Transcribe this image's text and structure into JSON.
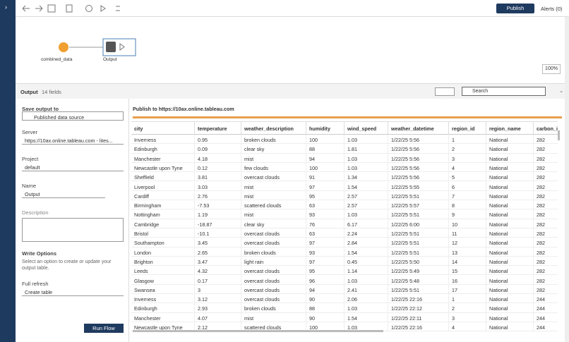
{
  "toolbar": {
    "publish": "Publish",
    "alerts": "Alerts (0)"
  },
  "canvas": {
    "input_node": "combined_data",
    "output_node": "Output",
    "zoom": "100%"
  },
  "panel": {
    "title": "Output",
    "fields": "14 fields",
    "search": "Search"
  },
  "settings": {
    "save_output_label": "Save output to",
    "save_output_value": "Published data source",
    "server_label": "Server",
    "server_value": "https://10ax.online.tableau.com - lites...",
    "project_label": "Project",
    "project_value": "default",
    "name_label": "Name",
    "name_value": "Output",
    "description_label": "Description",
    "write_options_title": "Write Options",
    "write_options_text": "Select an option to create or update your output table.",
    "refresh_label": "Full refresh",
    "refresh_value": "Create table",
    "run": "Run Flow"
  },
  "table": {
    "title": "Publish to https://10ax.online.tableau.com",
    "columns": [
      "city",
      "temperature",
      "weather_description",
      "humidity",
      "wind_speed",
      "weather_datetime",
      "region_id",
      "region_name",
      "carbon_int"
    ],
    "rows": [
      [
        "Inverness",
        "0.95",
        "broken clouds",
        "100",
        "1.03",
        "1/22/25 5:56",
        "1",
        "National",
        "282"
      ],
      [
        "Edinburgh",
        "0.09",
        "clear sky",
        "88",
        "1.81",
        "1/22/25 5:56",
        "2",
        "National",
        "282"
      ],
      [
        "Manchester",
        "4.18",
        "mist",
        "94",
        "1.03",
        "1/22/25 5:56",
        "3",
        "National",
        "282"
      ],
      [
        "Newcastle upon Tyne",
        "0.12",
        "few clouds",
        "100",
        "1.03",
        "1/22/25 5:56",
        "4",
        "National",
        "282"
      ],
      [
        "Sheffield",
        "3.81",
        "overcast clouds",
        "91",
        "1.34",
        "1/22/25 5:56",
        "5",
        "National",
        "282"
      ],
      [
        "Liverpool",
        "3.03",
        "mist",
        "97",
        "1.54",
        "1/22/25 5:55",
        "6",
        "National",
        "282"
      ],
      [
        "Cardiff",
        "2.76",
        "mist",
        "95",
        "2.57",
        "1/22/25 5:51",
        "7",
        "National",
        "282"
      ],
      [
        "Birmingham",
        "-7.53",
        "scattered clouds",
        "63",
        "2.57",
        "1/22/25 5:57",
        "8",
        "National",
        "282"
      ],
      [
        "Nottingham",
        "1.19",
        "mist",
        "93",
        "1.03",
        "1/22/25 5:51",
        "9",
        "National",
        "282"
      ],
      [
        "Cambridge",
        "-18.87",
        "clear sky",
        "76",
        "6.17",
        "1/22/25 6:00",
        "10",
        "National",
        "282"
      ],
      [
        "Bristol",
        "-10.1",
        "overcast clouds",
        "63",
        "2.24",
        "1/22/25 5:51",
        "11",
        "National",
        "282"
      ],
      [
        "Southampton",
        "3.45",
        "overcast clouds",
        "97",
        "2.84",
        "1/22/25 5:51",
        "12",
        "National",
        "282"
      ],
      [
        "London",
        "2.65",
        "broken clouds",
        "93",
        "1.54",
        "1/22/25 5:51",
        "13",
        "National",
        "282"
      ],
      [
        "Brighton",
        "3.47",
        "light rain",
        "97",
        "0.45",
        "1/22/25 5:50",
        "14",
        "National",
        "282"
      ],
      [
        "Leeds",
        "4.32",
        "overcast clouds",
        "95",
        "1.14",
        "1/22/25 5:49",
        "15",
        "National",
        "282"
      ],
      [
        "Glasgow",
        "0.17",
        "overcast clouds",
        "96",
        "1.03",
        "1/22/25 5:48",
        "16",
        "National",
        "282"
      ],
      [
        "Swansea",
        "3",
        "overcast clouds",
        "94",
        "2.41",
        "1/22/25 5:51",
        "17",
        "National",
        "282"
      ],
      [
        "Inverness",
        "3.12",
        "overcast clouds",
        "90",
        "2.06",
        "1/22/25 22:16",
        "1",
        "National",
        "244"
      ],
      [
        "Edinburgh",
        "2.93",
        "broken clouds",
        "88",
        "1.03",
        "1/22/25 22:12",
        "2",
        "National",
        "244"
      ],
      [
        "Manchester",
        "4.07",
        "mist",
        "90",
        "1.54",
        "1/22/25 22:11",
        "3",
        "National",
        "244"
      ],
      [
        "Newcastle upon Tyne",
        "2.12",
        "scattered clouds",
        "100",
        "1.03",
        "1/22/25 22:16",
        "4",
        "National",
        "244"
      ]
    ]
  }
}
